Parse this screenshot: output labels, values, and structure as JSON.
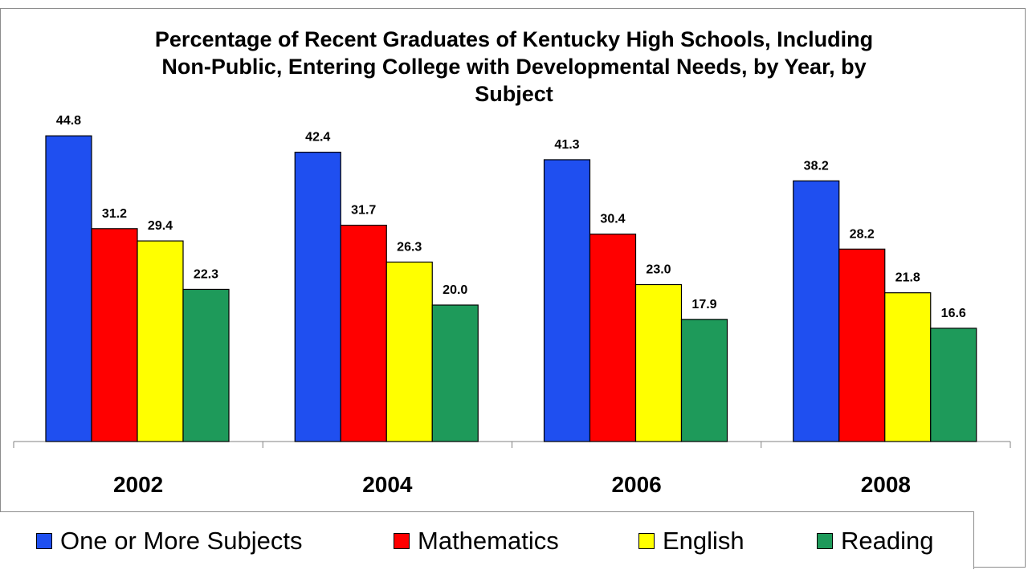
{
  "chart_data": {
    "type": "bar",
    "title_lines": [
      "Percentage of Recent Graduates of Kentucky High Schools, Including",
      "Non-Public, Entering College with Developmental Needs, by Year, by",
      "Subject"
    ],
    "categories": [
      "2002",
      "2004",
      "2006",
      "2008"
    ],
    "series": [
      {
        "name": "One or More Subjects",
        "color": "#1f4ff0",
        "values": [
          44.8,
          42.4,
          41.3,
          38.2
        ],
        "labels": [
          "44.8",
          "42.4",
          "41.3",
          "38.2"
        ]
      },
      {
        "name": "Mathematics",
        "color": "#ff0000",
        "values": [
          31.2,
          31.7,
          30.4,
          28.2
        ],
        "labels": [
          "31.2",
          "31.7",
          "30.4",
          "28.2"
        ]
      },
      {
        "name": "English",
        "color": "#ffff00",
        "values": [
          29.4,
          26.3,
          23.0,
          21.8
        ],
        "labels": [
          "29.4",
          "26.3",
          "23.0",
          "21.8"
        ]
      },
      {
        "name": "Reading",
        "color": "#1e9a5a",
        "values": [
          22.3,
          20.0,
          17.9,
          16.6
        ],
        "labels": [
          "22.3",
          "20.0",
          "17.9",
          "16.6"
        ]
      }
    ],
    "ylim": [
      0,
      50
    ],
    "grid": false,
    "legend_position": "bottom"
  }
}
